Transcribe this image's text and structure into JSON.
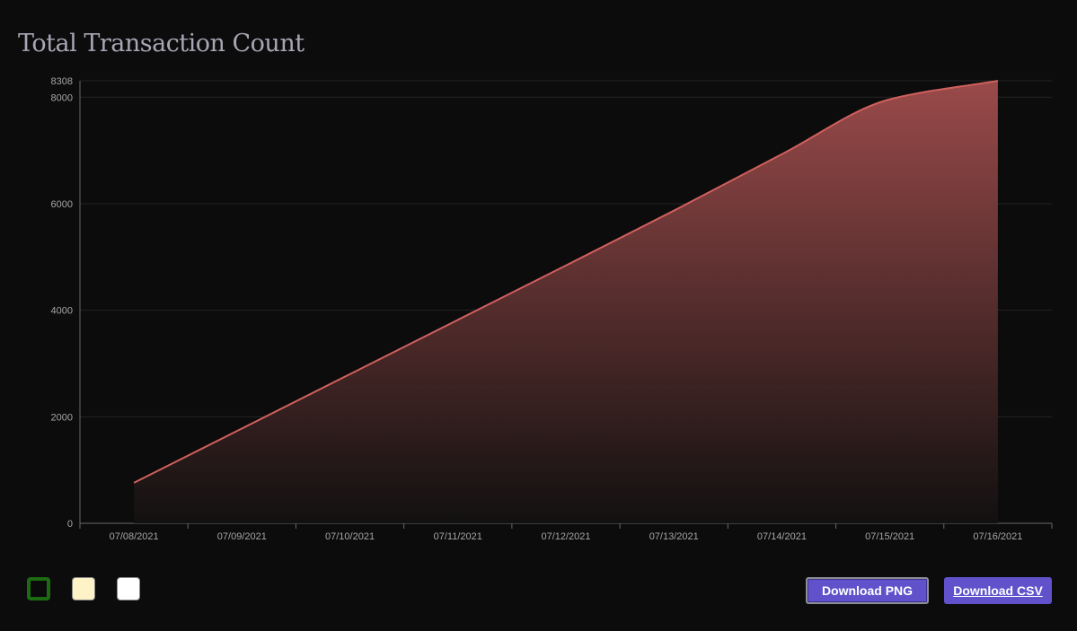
{
  "title": "Total Transaction Count",
  "chart_data": {
    "type": "area",
    "title": "Total Transaction Count",
    "xlabel": "",
    "ylabel": "",
    "categories": [
      "07/08/2021",
      "07/09/2021",
      "07/10/2021",
      "07/11/2021",
      "07/12/2021",
      "07/13/2021",
      "07/14/2021",
      "07/15/2021",
      "07/16/2021"
    ],
    "y_ticks": [
      0,
      2000,
      4000,
      6000,
      8000,
      8308
    ],
    "ylim": [
      0,
      8308
    ],
    "grid": true,
    "series": [
      {
        "values": [
          760,
          1780,
          2800,
          3820,
          4840,
          5870,
          6930,
          7960,
          8308
        ]
      }
    ],
    "colors": {
      "line": "#d0605e",
      "fill_top": "#9a4a4a",
      "fill_bottom": "#121010"
    }
  },
  "theme_swatches": [
    {
      "name": "dark",
      "color": "#0b0b0b",
      "selected": true
    },
    {
      "name": "cream",
      "color": "#fdf3c6",
      "selected": false
    },
    {
      "name": "white",
      "color": "#ffffff",
      "selected": false
    }
  ],
  "buttons": {
    "download_png": "Download PNG",
    "download_csv": "Download CSV",
    "accent": "#6152cc"
  }
}
